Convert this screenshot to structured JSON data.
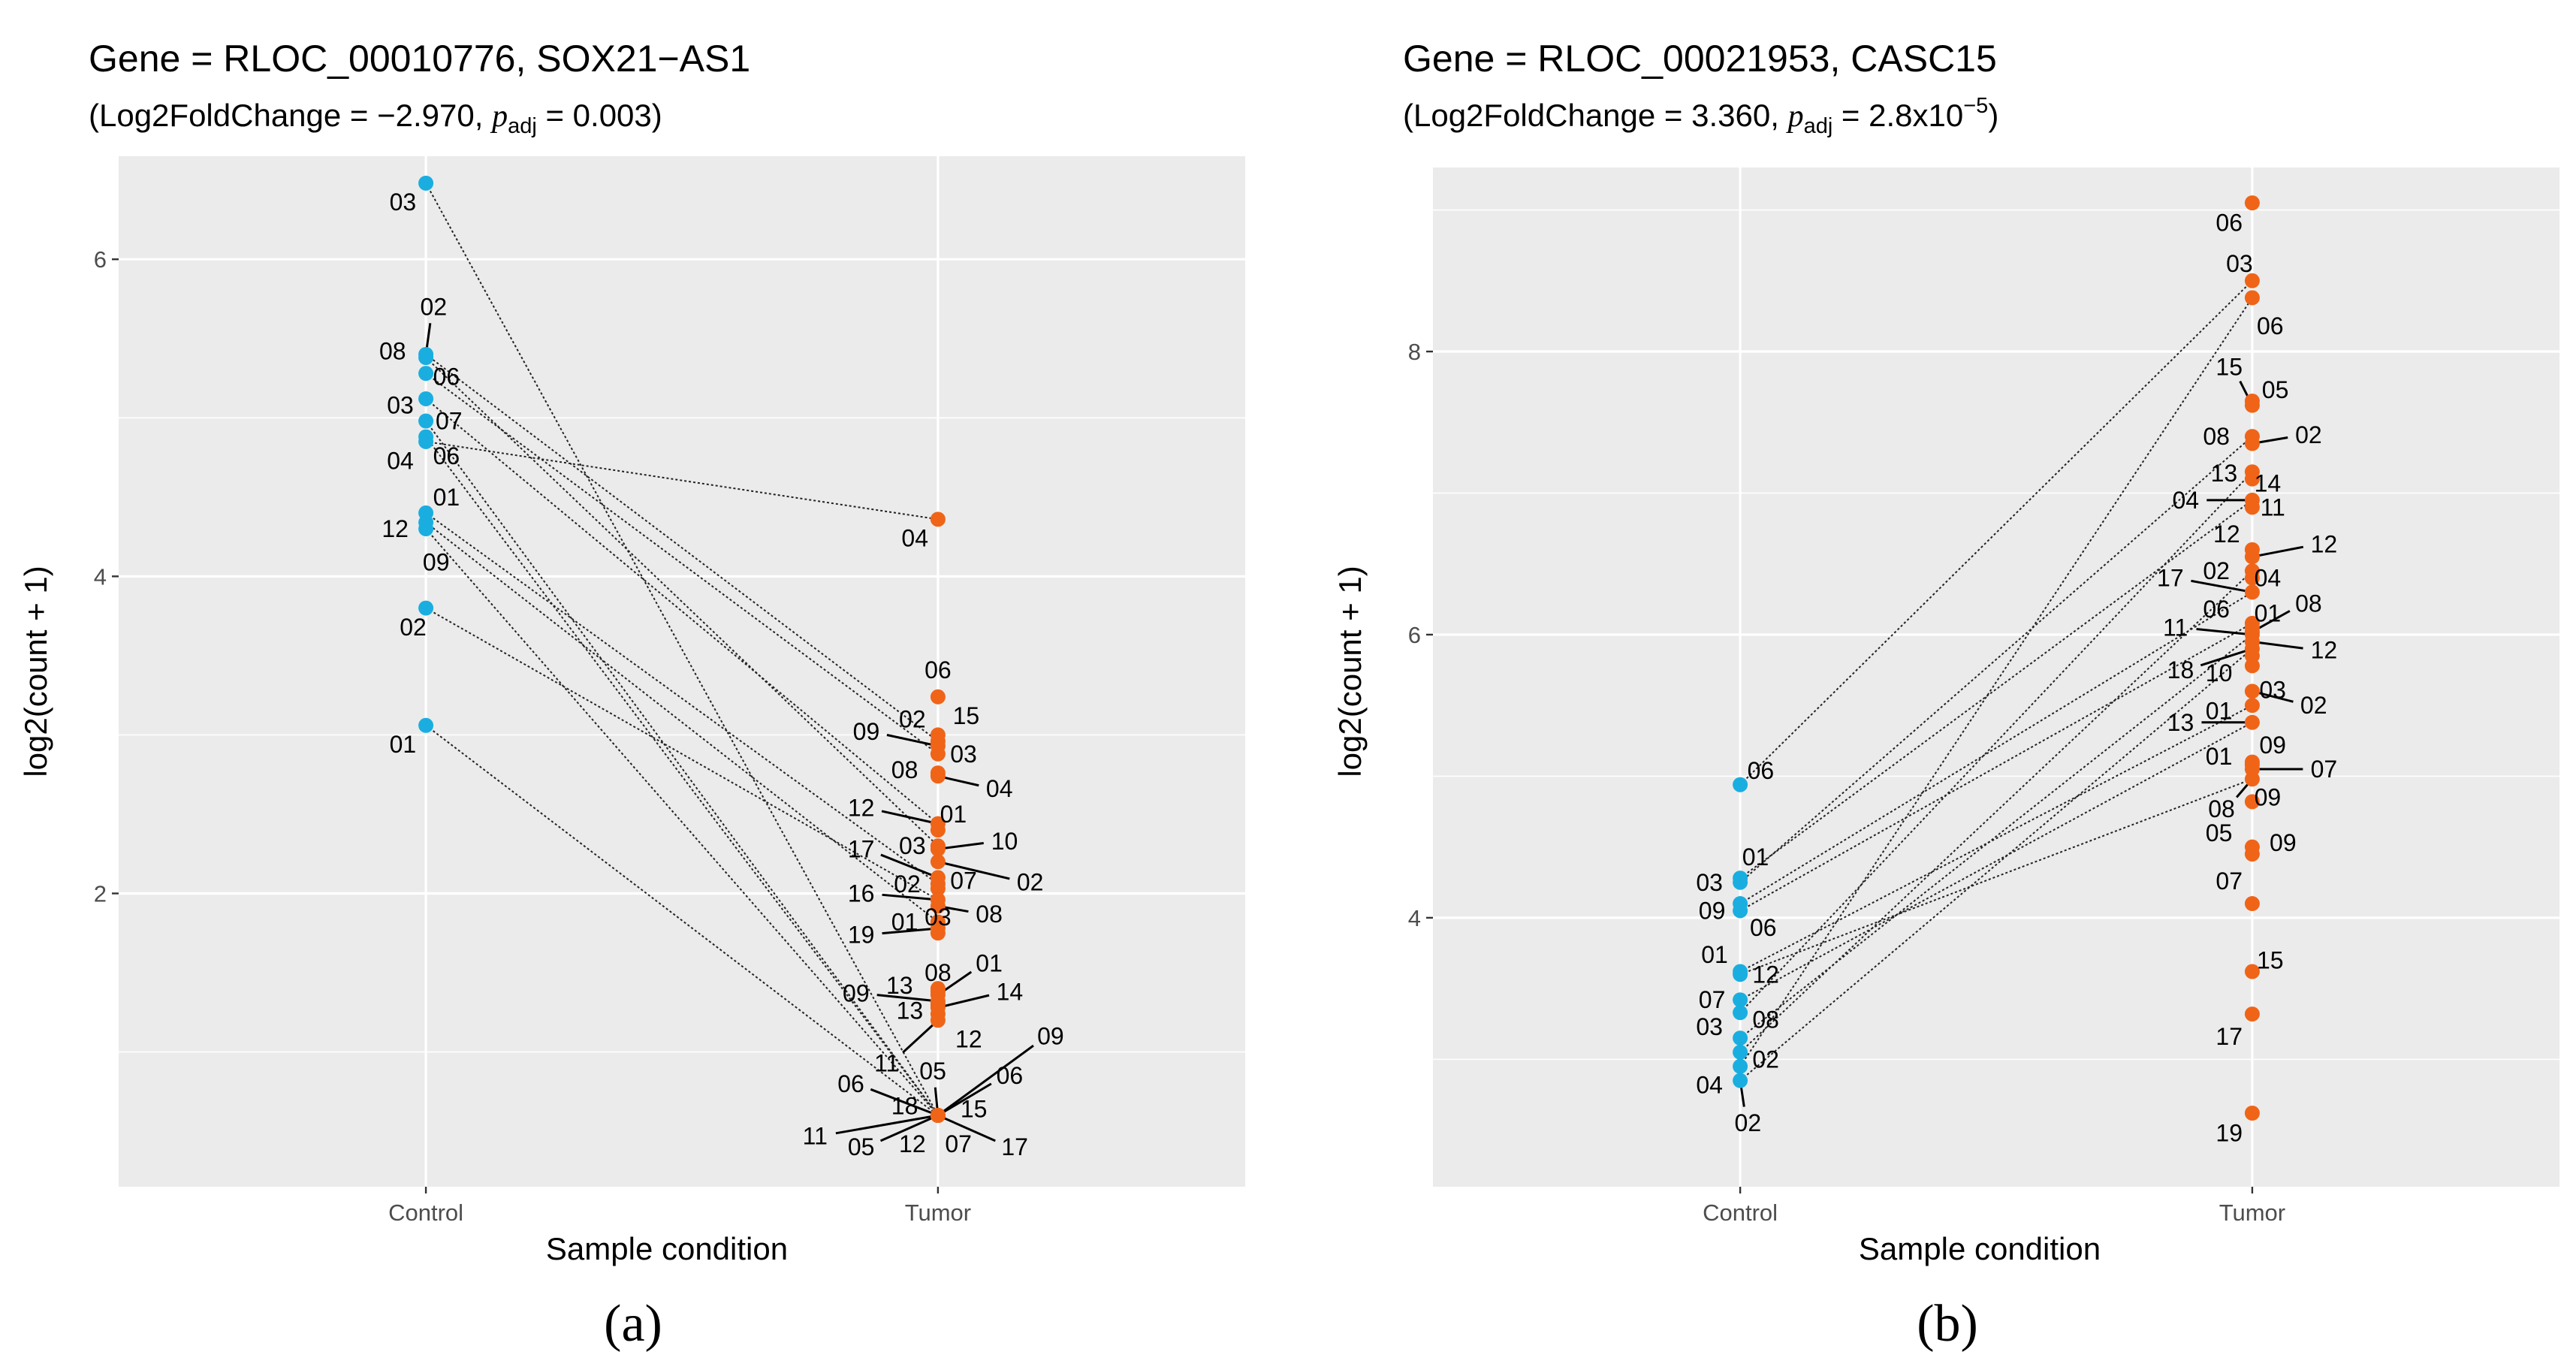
{
  "chart_data": [
    {
      "type": "scatter",
      "panel_label": "(a)",
      "title": "Gene =  RLOC_00010776, SOX21−AS1",
      "subtitle": {
        "prefix": "(Log2FoldChange = −2.970, ",
        "p": "p",
        "sub": "adj",
        "suffix": "  = 0.003)"
      },
      "xlabel": "Sample condition",
      "ylabel": "log2(count + 1)",
      "categories": [
        "Control",
        "Tumor"
      ],
      "ylim": [
        0.15,
        6.65
      ],
      "yticks": [
        2,
        4,
        6
      ],
      "colors": {
        "Control": "#1aaee0",
        "Tumor": "#f06418"
      },
      "points": [
        {
          "cond": "Control",
          "y": 6.48,
          "label": "03",
          "l": [
            -0.045,
            -0.12
          ]
        },
        {
          "cond": "Control",
          "y": 5.4,
          "label": "02",
          "l": [
            0.015,
            0.3
          ]
        },
        {
          "cond": "Control",
          "y": 5.38,
          "label": "08",
          "l": [
            -0.065,
            0.04
          ]
        },
        {
          "cond": "Control",
          "y": 5.28,
          "label": "06",
          "l": [
            0.04,
            -0.02
          ]
        },
        {
          "cond": "Control",
          "y": 5.12,
          "label": "03",
          "l": [
            -0.05,
            -0.04
          ]
        },
        {
          "cond": "Control",
          "y": 4.98,
          "label": "07",
          "l": [
            0.045,
            0.0
          ]
        },
        {
          "cond": "Control",
          "y": 4.88,
          "label": "06",
          "l": [
            0.04,
            -0.12
          ]
        },
        {
          "cond": "Control",
          "y": 4.85,
          "label": "04",
          "l": [
            -0.05,
            -0.12
          ]
        },
        {
          "cond": "Control",
          "y": 4.4,
          "label": "01",
          "l": [
            0.04,
            0.1
          ]
        },
        {
          "cond": "Control",
          "y": 4.3,
          "label": "12",
          "l": [
            -0.06,
            0.0
          ]
        },
        {
          "cond": "Control",
          "y": 4.34,
          "label": "09",
          "l": [
            0.02,
            -0.25
          ]
        },
        {
          "cond": "Control",
          "y": 3.8,
          "label": "02",
          "l": [
            -0.025,
            -0.12
          ]
        },
        {
          "cond": "Control",
          "y": 3.06,
          "label": "01",
          "l": [
            -0.045,
            -0.12
          ]
        },
        {
          "cond": "Tumor",
          "y": 4.36,
          "label": "04",
          "l": [
            -0.045,
            -0.12
          ]
        },
        {
          "cond": "Tumor",
          "y": 3.24,
          "label": "06",
          "l": [
            0.0,
            0.17
          ]
        },
        {
          "cond": "Tumor",
          "y": 3.0,
          "label": "15",
          "l": [
            0.055,
            0.12
          ]
        },
        {
          "cond": "Tumor",
          "y": 2.96,
          "label": "02",
          "l": [
            -0.05,
            0.14
          ]
        },
        {
          "cond": "Tumor",
          "y": 2.93,
          "label": "09",
          "l": [
            -0.14,
            0.09
          ]
        },
        {
          "cond": "Tumor",
          "y": 2.88,
          "label": "03",
          "l": [
            0.05,
            0.0
          ]
        },
        {
          "cond": "Tumor",
          "y": 2.76,
          "label": "08",
          "l": [
            -0.065,
            0.02
          ]
        },
        {
          "cond": "Tumor",
          "y": 2.74,
          "label": "04",
          "l": [
            0.12,
            -0.08
          ]
        },
        {
          "cond": "Tumor",
          "y": 2.44,
          "label": "12",
          "l": [
            -0.15,
            0.1
          ]
        },
        {
          "cond": "Tumor",
          "y": 2.4,
          "label": "01",
          "l": [
            0.03,
            0.1
          ]
        },
        {
          "cond": "Tumor",
          "y": 2.3,
          "label": "03",
          "l": [
            -0.05,
            0.0
          ]
        },
        {
          "cond": "Tumor",
          "y": 2.28,
          "label": "10",
          "l": [
            0.13,
            0.05
          ]
        },
        {
          "cond": "Tumor",
          "y": 2.2,
          "label": "02",
          "l": [
            0.18,
            -0.13
          ]
        },
        {
          "cond": "Tumor",
          "y": 2.1,
          "label": "17",
          "l": [
            -0.15,
            0.18
          ]
        },
        {
          "cond": "Tumor",
          "y": 2.06,
          "label": "02",
          "l": [
            -0.06,
            0.0
          ]
        },
        {
          "cond": "Tumor",
          "y": 2.03,
          "label": "07",
          "l": [
            0.05,
            0.05
          ]
        },
        {
          "cond": "Tumor",
          "y": 1.96,
          "label": "16",
          "l": [
            -0.15,
            0.04
          ]
        },
        {
          "cond": "Tumor",
          "y": 1.92,
          "label": "08",
          "l": [
            0.1,
            -0.05
          ]
        },
        {
          "cond": "Tumor",
          "y": 1.82,
          "label": "01",
          "l": [
            -0.065,
            0.0
          ]
        },
        {
          "cond": "Tumor",
          "y": 1.78,
          "label": "19",
          "l": [
            -0.15,
            -0.04
          ]
        },
        {
          "cond": "Tumor",
          "y": 1.75,
          "label": "03",
          "l": [
            0.0,
            0.1
          ]
        },
        {
          "cond": "Tumor",
          "y": 1.4,
          "label": "08",
          "l": [
            0.0,
            0.1
          ]
        },
        {
          "cond": "Tumor",
          "y": 1.38,
          "label": "13",
          "l": [
            -0.075,
            0.04
          ]
        },
        {
          "cond": "Tumor",
          "y": 1.36,
          "label": "01",
          "l": [
            0.1,
            0.2
          ]
        },
        {
          "cond": "Tumor",
          "y": 1.32,
          "label": "09",
          "l": [
            -0.16,
            0.05
          ]
        },
        {
          "cond": "Tumor",
          "y": 1.3,
          "label": "13",
          "l": [
            -0.055,
            -0.04
          ]
        },
        {
          "cond": "Tumor",
          "y": 1.28,
          "label": "14",
          "l": [
            0.14,
            0.1
          ]
        },
        {
          "cond": "Tumor",
          "y": 1.24,
          "label": "12",
          "l": [
            0.06,
            -0.16
          ]
        },
        {
          "cond": "Tumor",
          "y": 1.2,
          "label": "11",
          "l": [
            -0.1,
            -0.27
          ]
        },
        {
          "cond": "Tumor",
          "y": 0.6,
          "label": "09",
          "l": [
            0.22,
            0.5
          ]
        },
        {
          "cond": "Tumor",
          "y": 0.6,
          "label": "06",
          "l": [
            0.14,
            0.25
          ]
        },
        {
          "cond": "Tumor",
          "y": 0.6,
          "label": "05",
          "l": [
            -0.01,
            0.28
          ]
        },
        {
          "cond": "Tumor",
          "y": 0.6,
          "label": "06",
          "l": [
            -0.17,
            0.2
          ]
        },
        {
          "cond": "Tumor",
          "y": 0.6,
          "label": "18",
          "l": [
            -0.065,
            0.06
          ]
        },
        {
          "cond": "Tumor",
          "y": 0.6,
          "label": "15",
          "l": [
            0.07,
            0.04
          ]
        },
        {
          "cond": "Tumor",
          "y": 0.6,
          "label": "11",
          "l": [
            -0.24,
            -0.13
          ]
        },
        {
          "cond": "Tumor",
          "y": 0.6,
          "label": "05",
          "l": [
            -0.15,
            -0.2
          ]
        },
        {
          "cond": "Tumor",
          "y": 0.6,
          "label": "12",
          "l": [
            -0.05,
            -0.18
          ]
        },
        {
          "cond": "Tumor",
          "y": 0.6,
          "label": "07",
          "l": [
            0.04,
            -0.18
          ]
        },
        {
          "cond": "Tumor",
          "y": 0.6,
          "label": "17",
          "l": [
            0.15,
            -0.2
          ]
        }
      ],
      "pairs": [
        [
          6.48,
          0.6
        ],
        [
          5.4,
          2.96
        ],
        [
          5.38,
          2.3
        ],
        [
          5.28,
          2.88
        ],
        [
          5.12,
          2.44
        ],
        [
          4.98,
          0.6
        ],
        [
          4.88,
          0.6
        ],
        [
          4.85,
          4.36
        ],
        [
          4.4,
          2.06
        ],
        [
          4.3,
          0.6
        ],
        [
          4.34,
          1.82
        ],
        [
          3.8,
          1.96
        ],
        [
          3.06,
          0.6
        ]
      ]
    },
    {
      "type": "scatter",
      "panel_label": "(b)",
      "title": "Gene =  RLOC_00021953, CASC15",
      "subtitle": {
        "prefix": "(Log2FoldChange = 3.360, ",
        "p": "p",
        "sub": "adj",
        "suffix_pre": "  = 2.8x10",
        "sup": "−5",
        "suffix": ")"
      },
      "xlabel": "Sample condition",
      "ylabel": "log2(count + 1)",
      "categories": [
        "Control",
        "Tumor"
      ],
      "ylim": [
        2.1,
        9.3
      ],
      "yticks": [
        4,
        6,
        8
      ],
      "colors": {
        "Control": "#1aaee0",
        "Tumor": "#f06418"
      },
      "points": [
        {
          "cond": "Control",
          "y": 4.94,
          "label": "06",
          "l": [
            0.04,
            0.1
          ]
        },
        {
          "cond": "Control",
          "y": 4.28,
          "label": "01",
          "l": [
            0.03,
            0.15
          ]
        },
        {
          "cond": "Control",
          "y": 4.25,
          "label": "03",
          "l": [
            -0.06,
            0.0
          ]
        },
        {
          "cond": "Control",
          "y": 4.1,
          "label": "09",
          "l": [
            -0.055,
            -0.05
          ]
        },
        {
          "cond": "Control",
          "y": 4.05,
          "label": "06",
          "l": [
            0.045,
            -0.12
          ]
        },
        {
          "cond": "Control",
          "y": 3.62,
          "label": "01",
          "l": [
            -0.05,
            0.12
          ]
        },
        {
          "cond": "Control",
          "y": 3.6,
          "label": "12",
          "l": [
            0.05,
            0.0
          ]
        },
        {
          "cond": "Control",
          "y": 3.42,
          "label": "07",
          "l": [
            -0.055,
            0.0
          ]
        },
        {
          "cond": "Control",
          "y": 3.33,
          "label": "08",
          "l": [
            0.05,
            -0.05
          ]
        },
        {
          "cond": "Control",
          "y": 3.15,
          "label": "03",
          "l": [
            -0.06,
            0.08
          ]
        },
        {
          "cond": "Control",
          "y": 3.05,
          "label": "02",
          "l": [
            0.05,
            -0.05
          ]
        },
        {
          "cond": "Control",
          "y": 2.95,
          "label": "04",
          "l": [
            -0.06,
            -0.13
          ]
        },
        {
          "cond": "Control",
          "y": 2.85,
          "label": "02",
          "l": [
            0.015,
            -0.3
          ]
        },
        {
          "cond": "Tumor",
          "y": 9.05,
          "label": "06",
          "l": [
            -0.045,
            -0.14
          ]
        },
        {
          "cond": "Tumor",
          "y": 8.5,
          "label": "03",
          "l": [
            -0.025,
            0.12
          ]
        },
        {
          "cond": "Tumor",
          "y": 8.38,
          "label": "06",
          "l": [
            0.035,
            -0.2
          ]
        },
        {
          "cond": "Tumor",
          "y": 7.65,
          "label": "05",
          "l": [
            0.045,
            0.08
          ]
        },
        {
          "cond": "Tumor",
          "y": 7.62,
          "label": "15",
          "l": [
            -0.045,
            0.27
          ]
        },
        {
          "cond": "Tumor",
          "y": 7.4,
          "label": "08",
          "l": [
            -0.07,
            0.0
          ]
        },
        {
          "cond": "Tumor",
          "y": 7.35,
          "label": "02",
          "l": [
            0.11,
            0.06
          ]
        },
        {
          "cond": "Tumor",
          "y": 7.15,
          "label": "13",
          "l": [
            -0.055,
            -0.01
          ]
        },
        {
          "cond": "Tumor",
          "y": 7.1,
          "label": "14",
          "l": [
            0.03,
            -0.03
          ]
        },
        {
          "cond": "Tumor",
          "y": 6.95,
          "label": "04",
          "l": [
            -0.13,
            0.0
          ]
        },
        {
          "cond": "Tumor",
          "y": 6.9,
          "label": "11",
          "l": [
            0.04,
            0.0
          ]
        },
        {
          "cond": "Tumor",
          "y": 6.6,
          "label": "12",
          "l": [
            -0.05,
            0.11
          ]
        },
        {
          "cond": "Tumor",
          "y": 6.55,
          "label": "12",
          "l": [
            0.14,
            0.09
          ]
        },
        {
          "cond": "Tumor",
          "y": 6.45,
          "label": "02",
          "l": [
            -0.07,
            0.0
          ]
        },
        {
          "cond": "Tumor",
          "y": 6.4,
          "label": "04",
          "l": [
            0.03,
            0.0
          ]
        },
        {
          "cond": "Tumor",
          "y": 6.3,
          "label": "17",
          "l": [
            -0.16,
            0.1
          ]
        },
        {
          "cond": "Tumor",
          "y": 6.08,
          "label": "06",
          "l": [
            -0.07,
            0.1
          ]
        },
        {
          "cond": "Tumor",
          "y": 6.05,
          "label": "01",
          "l": [
            0.03,
            0.1
          ]
        },
        {
          "cond": "Tumor",
          "y": 6.02,
          "label": "08",
          "l": [
            0.11,
            0.2
          ]
        },
        {
          "cond": "Tumor",
          "y": 6.0,
          "label": "11",
          "l": [
            -0.15,
            0.05
          ]
        },
        {
          "cond": "Tumor",
          "y": 5.95,
          "label": "12",
          "l": [
            0.14,
            -0.06
          ]
        },
        {
          "cond": "Tumor",
          "y": 5.9,
          "label": "18",
          "l": [
            -0.14,
            -0.15
          ]
        },
        {
          "cond": "Tumor",
          "y": 5.85,
          "label": "10",
          "l": [
            -0.065,
            -0.12
          ]
        },
        {
          "cond": "Tumor",
          "y": 5.78,
          "label": "03",
          "l": [
            0.04,
            -0.17
          ]
        },
        {
          "cond": "Tumor",
          "y": 5.6,
          "label": "02",
          "l": [
            0.12,
            -0.1
          ]
        },
        {
          "cond": "Tumor",
          "y": 5.5,
          "label": "01",
          "l": [
            -0.065,
            -0.04
          ]
        },
        {
          "cond": "Tumor",
          "y": 5.38,
          "label": "13",
          "l": [
            -0.14,
            0.0
          ]
        },
        {
          "cond": "Tumor",
          "y": 5.1,
          "label": "09",
          "l": [
            0.04,
            0.12
          ]
        },
        {
          "cond": "Tumor",
          "y": 5.08,
          "label": "01",
          "l": [
            -0.065,
            0.06
          ]
        },
        {
          "cond": "Tumor",
          "y": 5.05,
          "label": "07",
          "l": [
            0.14,
            0.0
          ]
        },
        {
          "cond": "Tumor",
          "y": 4.98,
          "label": "08",
          "l": [
            -0.06,
            -0.21
          ]
        },
        {
          "cond": "Tumor",
          "y": 4.82,
          "label": "09",
          "l": [
            0.03,
            0.03
          ]
        },
        {
          "cond": "Tumor",
          "y": 4.5,
          "label": "05",
          "l": [
            -0.065,
            0.1
          ]
        },
        {
          "cond": "Tumor",
          "y": 4.45,
          "label": "09",
          "l": [
            0.06,
            0.08
          ]
        },
        {
          "cond": "Tumor",
          "y": 4.1,
          "label": "07",
          "l": [
            -0.045,
            0.16
          ]
        },
        {
          "cond": "Tumor",
          "y": 3.62,
          "label": "15",
          "l": [
            0.035,
            0.08
          ]
        },
        {
          "cond": "Tumor",
          "y": 3.32,
          "label": "17",
          "l": [
            -0.045,
            -0.16
          ]
        },
        {
          "cond": "Tumor",
          "y": 2.62,
          "label": "19",
          "l": [
            -0.045,
            -0.14
          ]
        }
      ],
      "pairs": [
        [
          4.94,
          8.5
        ],
        [
          4.28,
          6.95
        ],
        [
          4.25,
          7.4
        ],
        [
          4.1,
          6.3
        ],
        [
          4.05,
          6.08
        ],
        [
          3.62,
          5.5
        ],
        [
          3.6,
          4.98
        ],
        [
          3.42,
          5.38
        ],
        [
          3.33,
          7.15
        ],
        [
          3.15,
          6.0
        ],
        [
          3.05,
          6.45
        ],
        [
          2.95,
          8.38
        ],
        [
          2.85,
          5.9
        ]
      ]
    }
  ]
}
